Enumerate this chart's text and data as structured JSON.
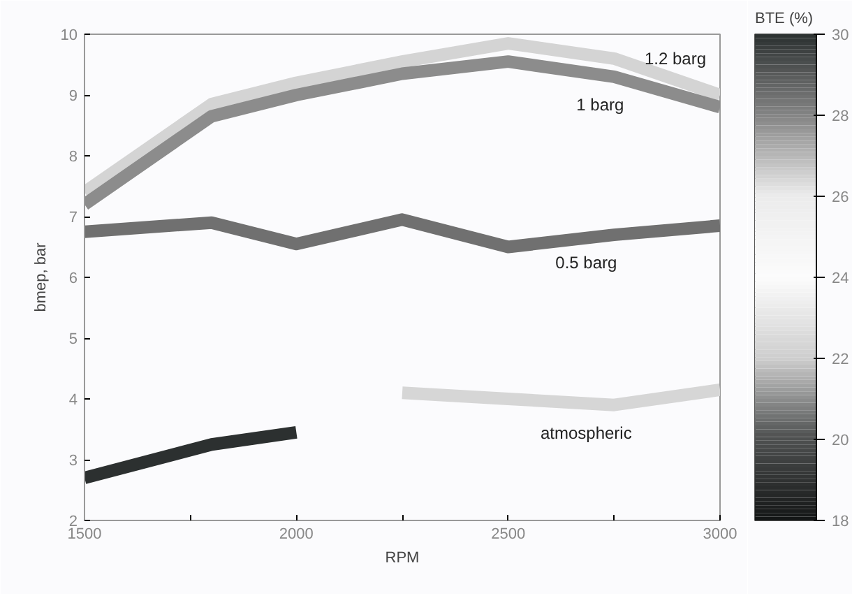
{
  "chart_data": {
    "type": "line",
    "xlabel": "RPM",
    "ylabel": "bmep, bar",
    "clabel": "BTE (%)",
    "x": [
      1500,
      1800,
      2000,
      2250,
      2500,
      2750,
      3000
    ],
    "series": [
      {
        "name": "1.2 barg",
        "color": "#d4d4d4",
        "values": [
          7.4,
          8.85,
          9.2,
          9.55,
          9.85,
          9.6,
          9.0
        ]
      },
      {
        "name": "1 barg",
        "color": "#8c8c8c",
        "values": [
          7.2,
          8.65,
          9.0,
          9.35,
          9.55,
          9.3,
          8.8
        ]
      },
      {
        "name": "0.5 barg",
        "color": "#707070",
        "values": [
          6.75,
          6.9,
          6.55,
          6.95,
          6.5,
          6.7,
          6.85
        ]
      },
      {
        "name": "atmospheric",
        "color": "#d6d6d6",
        "x": [
          2250,
          2500,
          2750,
          3000
        ],
        "values": [
          4.1,
          4.0,
          3.9,
          4.15
        ]
      },
      {
        "color": "#2c3030",
        "x": [
          1500,
          1800,
          2000
        ],
        "values": [
          2.7,
          3.25,
          3.45
        ]
      }
    ],
    "xlim": [
      1500,
      3000
    ],
    "ylim": [
      2,
      10
    ],
    "xticks": [
      1500,
      {
        "value": 1750,
        "label": null
      },
      2000,
      {
        "value": 2250,
        "label": null
      },
      2500,
      {
        "value": 2750,
        "label": null
      },
      3000
    ],
    "yticks": [
      2,
      3,
      4,
      5,
      6,
      7,
      8,
      9,
      10
    ],
    "clim": [
      18,
      30
    ],
    "cticks": [
      18,
      20,
      22,
      24,
      26,
      28,
      30
    ],
    "grid": false
  }
}
